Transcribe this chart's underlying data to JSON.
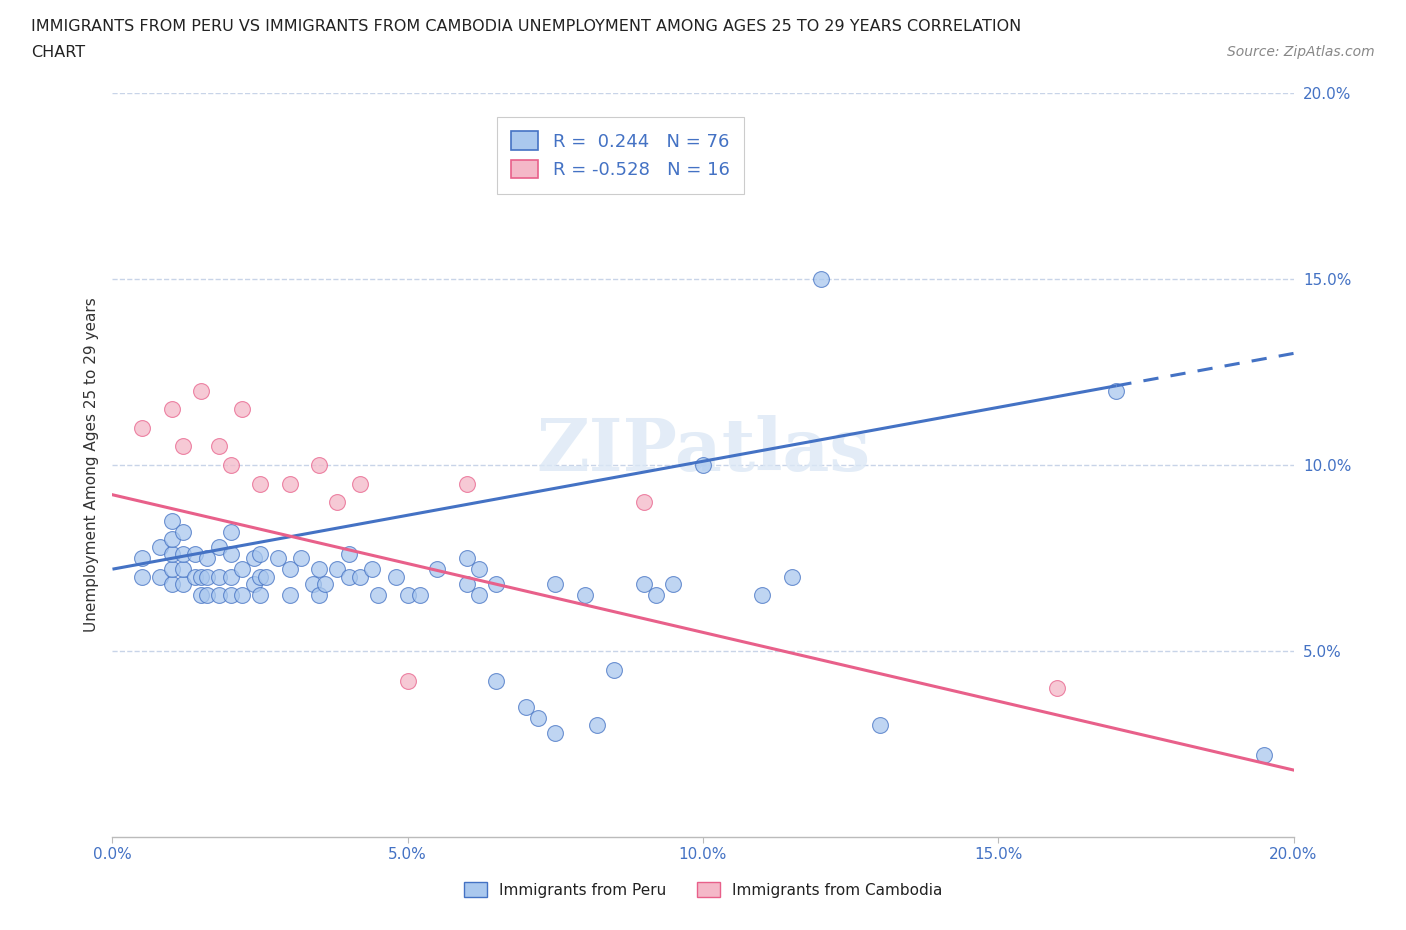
{
  "title_line1": "IMMIGRANTS FROM PERU VS IMMIGRANTS FROM CAMBODIA UNEMPLOYMENT AMONG AGES 25 TO 29 YEARS CORRELATION",
  "title_line2": "CHART",
  "source_text": "Source: ZipAtlas.com",
  "ylabel": "Unemployment Among Ages 25 to 29 years",
  "xlim": [
    0.0,
    0.2
  ],
  "ylim": [
    0.0,
    0.2
  ],
  "xtick_values": [
    0.0,
    0.05,
    0.1,
    0.15,
    0.2
  ],
  "ytick_values": [
    0.05,
    0.1,
    0.15,
    0.2
  ],
  "peru_R": 0.244,
  "peru_N": 76,
  "cambodia_R": -0.528,
  "cambodia_N": 16,
  "peru_color": "#aac8ee",
  "cambodia_color": "#f4b8c8",
  "peru_line_color": "#4472c4",
  "cambodia_line_color": "#e8608a",
  "watermark_text": "ZIPatlas",
  "background_color": "#ffffff",
  "grid_color": "#c8d4e8",
  "legend_label_peru": "Immigrants from Peru",
  "legend_label_cambodia": "Immigrants from Cambodia",
  "peru_scatter_x": [
    0.005,
    0.005,
    0.008,
    0.008,
    0.01,
    0.01,
    0.01,
    0.01,
    0.01,
    0.012,
    0.012,
    0.012,
    0.012,
    0.014,
    0.014,
    0.015,
    0.015,
    0.016,
    0.016,
    0.016,
    0.018,
    0.018,
    0.018,
    0.02,
    0.02,
    0.02,
    0.02,
    0.022,
    0.022,
    0.024,
    0.024,
    0.025,
    0.025,
    0.025,
    0.026,
    0.028,
    0.03,
    0.03,
    0.032,
    0.034,
    0.035,
    0.035,
    0.036,
    0.038,
    0.04,
    0.04,
    0.042,
    0.044,
    0.045,
    0.048,
    0.05,
    0.052,
    0.055,
    0.06,
    0.06,
    0.062,
    0.062,
    0.065,
    0.065,
    0.07,
    0.072,
    0.075,
    0.075,
    0.08,
    0.082,
    0.085,
    0.09,
    0.092,
    0.095,
    0.1,
    0.11,
    0.115,
    0.12,
    0.13,
    0.17,
    0.195
  ],
  "peru_scatter_y": [
    0.07,
    0.075,
    0.07,
    0.078,
    0.068,
    0.072,
    0.076,
    0.08,
    0.085,
    0.068,
    0.072,
    0.076,
    0.082,
    0.07,
    0.076,
    0.065,
    0.07,
    0.065,
    0.07,
    0.075,
    0.065,
    0.07,
    0.078,
    0.065,
    0.07,
    0.076,
    0.082,
    0.065,
    0.072,
    0.068,
    0.075,
    0.065,
    0.07,
    0.076,
    0.07,
    0.075,
    0.065,
    0.072,
    0.075,
    0.068,
    0.065,
    0.072,
    0.068,
    0.072,
    0.07,
    0.076,
    0.07,
    0.072,
    0.065,
    0.07,
    0.065,
    0.065,
    0.072,
    0.068,
    0.075,
    0.065,
    0.072,
    0.042,
    0.068,
    0.035,
    0.032,
    0.028,
    0.068,
    0.065,
    0.03,
    0.045,
    0.068,
    0.065,
    0.068,
    0.1,
    0.065,
    0.07,
    0.15,
    0.03,
    0.12,
    0.022
  ],
  "cambodia_scatter_x": [
    0.005,
    0.01,
    0.012,
    0.015,
    0.018,
    0.02,
    0.022,
    0.025,
    0.03,
    0.035,
    0.038,
    0.042,
    0.05,
    0.06,
    0.16,
    0.09
  ],
  "cambodia_scatter_y": [
    0.11,
    0.115,
    0.105,
    0.12,
    0.105,
    0.1,
    0.115,
    0.095,
    0.095,
    0.1,
    0.09,
    0.095,
    0.042,
    0.095,
    0.04,
    0.09
  ],
  "peru_line_x0": 0.0,
  "peru_line_y0": 0.072,
  "peru_line_x1": 0.2,
  "peru_line_y1": 0.13,
  "peru_line_solid_end": 0.17,
  "cambodia_line_x0": 0.0,
  "cambodia_line_y0": 0.092,
  "cambodia_line_x1": 0.2,
  "cambodia_line_y1": 0.018
}
